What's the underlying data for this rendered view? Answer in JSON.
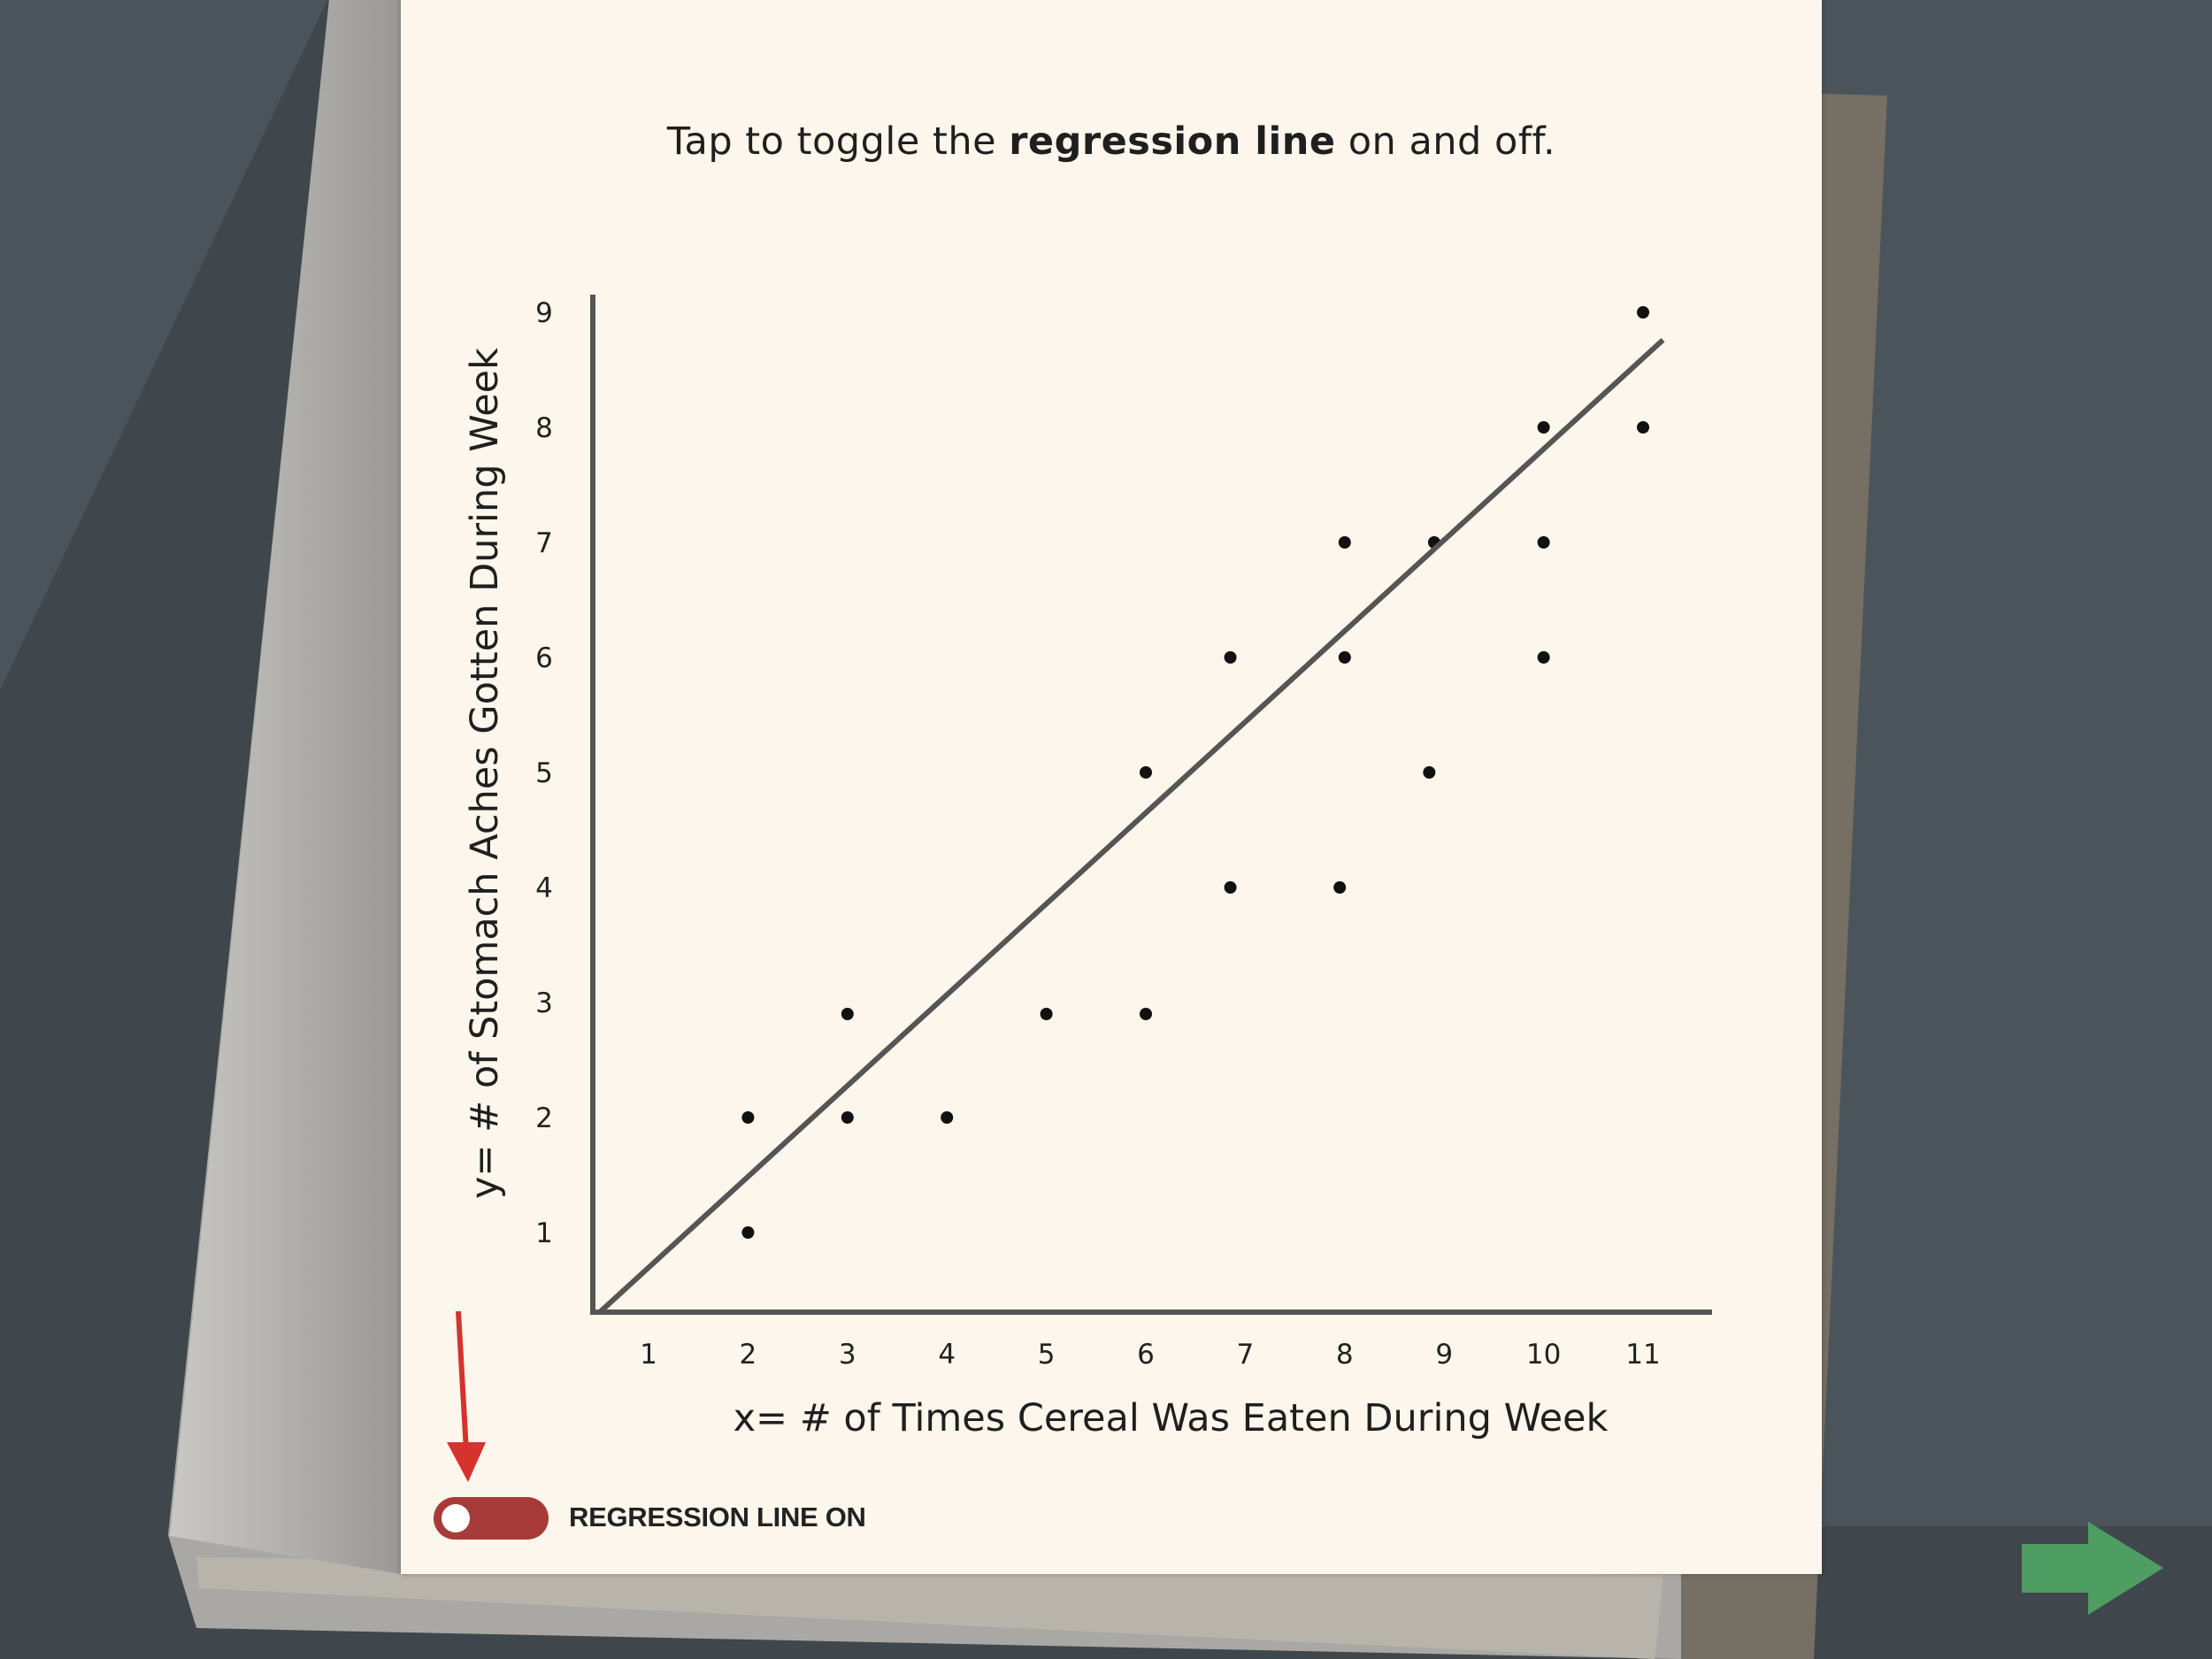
{
  "instruction": {
    "prefix": "Tap to toggle the ",
    "bold": "regression line",
    "suffix": " on and off."
  },
  "toggle": {
    "label": "REGRESSION LINE ON",
    "state": "on",
    "color": "#a83a3a"
  },
  "next_button": {
    "icon": "right-arrow-icon",
    "color": "#4e9d62"
  },
  "chart_data": {
    "type": "scatter",
    "xlabel": "x= # of Times Cereal Was Eaten During Week",
    "ylabel": "y= # of Stomach Aches Gotten During Week",
    "x_ticks": [
      1,
      2,
      3,
      4,
      5,
      6,
      7,
      8,
      9,
      10,
      11
    ],
    "y_ticks": [
      1,
      2,
      3,
      4,
      5,
      6,
      7,
      8,
      9
    ],
    "xlim": [
      0.5,
      11.4
    ],
    "ylim": [
      0.3,
      9.2
    ],
    "grid": false,
    "points": [
      {
        "x": 2,
        "y": 1
      },
      {
        "x": 2,
        "y": 2
      },
      {
        "x": 3,
        "y": 2
      },
      {
        "x": 3,
        "y": 2.9
      },
      {
        "x": 4,
        "y": 2
      },
      {
        "x": 5,
        "y": 2.9
      },
      {
        "x": 6,
        "y": 2.9
      },
      {
        "x": 6,
        "y": 5
      },
      {
        "x": 6.85,
        "y": 4
      },
      {
        "x": 6.85,
        "y": 6
      },
      {
        "x": 7.95,
        "y": 4
      },
      {
        "x": 8,
        "y": 6
      },
      {
        "x": 8,
        "y": 7
      },
      {
        "x": 8.85,
        "y": 5
      },
      {
        "x": 8.9,
        "y": 7
      },
      {
        "x": 10,
        "y": 6
      },
      {
        "x": 10,
        "y": 7
      },
      {
        "x": 10,
        "y": 8
      },
      {
        "x": 11,
        "y": 8
      },
      {
        "x": 11,
        "y": 9
      }
    ],
    "regression_line": {
      "visible": true,
      "x": [
        0.5,
        11.2
      ],
      "y": [
        0.3,
        8.76
      ]
    }
  }
}
